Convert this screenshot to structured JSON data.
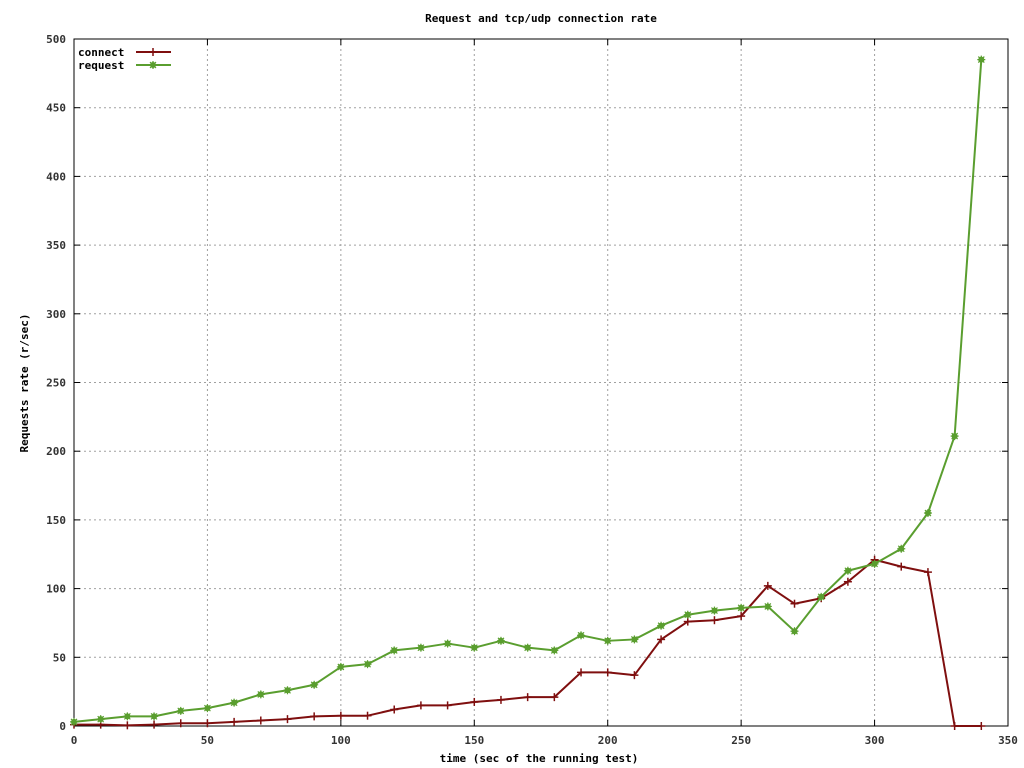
{
  "chart_data": {
    "type": "line",
    "title": "Request and tcp/udp connection rate",
    "xlabel": "time (sec of the running test)",
    "ylabel": "Requests rate (r/sec)",
    "xlim": [
      0,
      350
    ],
    "ylim": [
      0,
      500
    ],
    "xticks": [
      0,
      50,
      100,
      150,
      200,
      250,
      300,
      350
    ],
    "yticks": [
      0,
      50,
      100,
      150,
      200,
      250,
      300,
      350,
      400,
      450,
      500
    ],
    "grid": true,
    "legend_position": "top-left",
    "series": [
      {
        "name": "connect",
        "color": "#7f0f0f",
        "marker": "plus",
        "x": [
          0,
          10,
          20,
          30,
          40,
          50,
          60,
          70,
          80,
          90,
          100,
          110,
          120,
          130,
          140,
          150,
          160,
          170,
          180,
          190,
          200,
          210,
          220,
          230,
          240,
          250,
          260,
          270,
          280,
          290,
          300,
          310,
          320,
          330,
          340
        ],
        "values": [
          1,
          1,
          0.5,
          1,
          2,
          2,
          3,
          4,
          5,
          7,
          7.5,
          7.5,
          12,
          15,
          15,
          17.5,
          19,
          21,
          21,
          39,
          39,
          37,
          63,
          76,
          77,
          80,
          102,
          89,
          93,
          105,
          121,
          116,
          112,
          0,
          0
        ]
      },
      {
        "name": "request",
        "color": "#5a9e2f",
        "marker": "star",
        "x": [
          0,
          10,
          20,
          30,
          40,
          50,
          60,
          70,
          80,
          90,
          100,
          110,
          120,
          130,
          140,
          150,
          160,
          170,
          180,
          190,
          200,
          210,
          220,
          230,
          240,
          250,
          260,
          270,
          280,
          290,
          300,
          310,
          320,
          330,
          340
        ],
        "values": [
          3,
          5,
          7,
          7,
          11,
          13,
          17,
          23,
          26,
          30,
          43,
          45,
          55,
          57,
          60,
          57,
          62,
          57,
          55,
          66,
          62,
          63,
          73,
          81,
          84,
          86,
          87,
          69,
          94,
          113,
          118,
          129,
          155,
          211,
          485
        ]
      }
    ]
  }
}
